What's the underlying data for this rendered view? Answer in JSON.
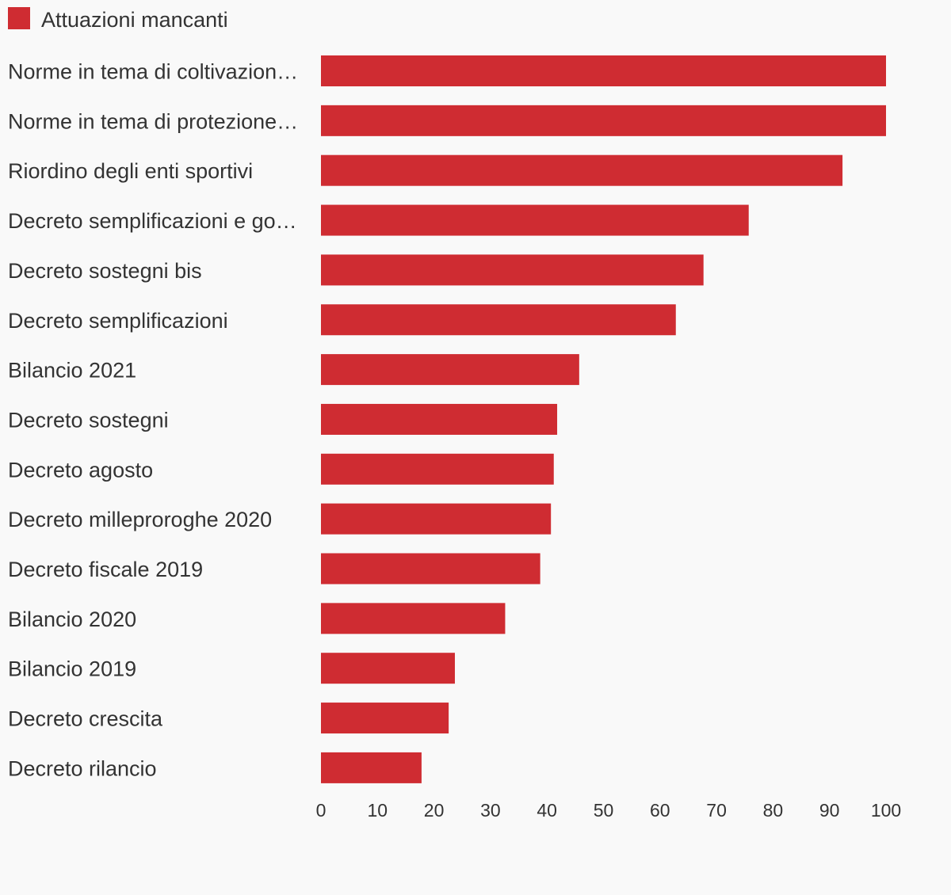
{
  "colors": {
    "background": "#f9f9f9",
    "bar": "#cf2c32",
    "text": "#333333"
  },
  "legend": {
    "label": "Attuazioni mancanti",
    "placement": "top-left"
  },
  "chart_data": {
    "type": "bar",
    "orientation": "horizontal",
    "title": "",
    "xlabel": "",
    "ylabel": "",
    "categories": [
      "Norme in tema di coltivazion…",
      "Norme in tema di protezione…",
      "Riordino degli enti sportivi",
      "Decreto semplificazioni e go…",
      "Decreto sostegni bis",
      "Decreto semplificazioni",
      "Bilancio 2021",
      "Decreto sostegni",
      "Decreto agosto",
      "Decreto milleproroghe 2020",
      "Decreto fiscale 2019",
      "Bilancio 2020",
      "Bilancio 2019",
      "Decreto crescita",
      "Decreto rilancio"
    ],
    "series": [
      {
        "name": "Attuazioni mancanti",
        "values": [
          100,
          100,
          92.3,
          75.7,
          67.7,
          62.8,
          45.7,
          41.8,
          41.2,
          40.7,
          38.8,
          32.6,
          23.7,
          22.6,
          17.8
        ]
      }
    ],
    "xlim": [
      0,
      100
    ],
    "xticks": [
      0,
      10,
      20,
      30,
      40,
      50,
      60,
      70,
      80,
      90,
      100
    ],
    "grid": false
  }
}
